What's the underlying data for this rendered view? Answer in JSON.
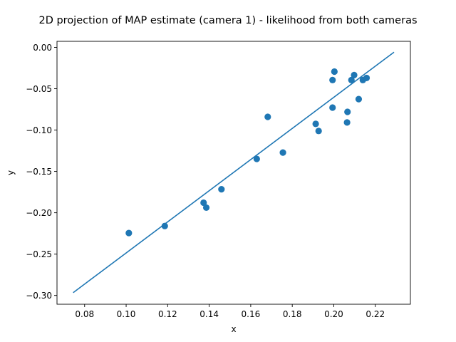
{
  "chart_data": {
    "type": "scatter",
    "title": "2D projection of MAP estimate (camera 1) - likelihood from both cameras",
    "xlabel": "x",
    "ylabel": "y",
    "xlim": [
      0.0667,
      0.2369
    ],
    "ylim": [
      -0.3106,
      0.0073
    ],
    "xticks": [
      0.08,
      0.1,
      0.12,
      0.14,
      0.16,
      0.18,
      0.2,
      0.22
    ],
    "xtick_labels": [
      "0.08",
      "0.10",
      "0.12",
      "0.14",
      "0.16",
      "0.18",
      "0.20",
      "0.22"
    ],
    "yticks": [
      0.0,
      -0.05,
      -0.1,
      -0.15,
      -0.2,
      -0.25,
      -0.3
    ],
    "ytick_labels": [
      "0.00",
      "−0.05",
      "−0.10",
      "−0.15",
      "−0.20",
      "−0.25",
      "−0.30"
    ],
    "grid": false,
    "color": "#1f77b4",
    "points": [
      [
        0.1013,
        -0.2245
      ],
      [
        0.1186,
        -0.216
      ],
      [
        0.1373,
        -0.1878
      ],
      [
        0.1386,
        -0.1938
      ],
      [
        0.1459,
        -0.1716
      ],
      [
        0.1629,
        -0.1349
      ],
      [
        0.1682,
        -0.084
      ],
      [
        0.1755,
        -0.1272
      ],
      [
        0.1913,
        -0.0925
      ],
      [
        0.1927,
        -0.1011
      ],
      [
        0.1994,
        -0.0728
      ],
      [
        0.1994,
        -0.0395
      ],
      [
        0.2003,
        -0.0293
      ],
      [
        0.2064,
        -0.0908
      ],
      [
        0.2066,
        -0.078
      ],
      [
        0.2085,
        -0.0395
      ],
      [
        0.2098,
        -0.0335
      ],
      [
        0.212,
        -0.0626
      ],
      [
        0.214,
        -0.0395
      ],
      [
        0.2158,
        -0.037
      ]
    ],
    "line": [
      [
        0.0745,
        -0.2966
      ],
      [
        0.229,
        -0.0058
      ]
    ]
  }
}
